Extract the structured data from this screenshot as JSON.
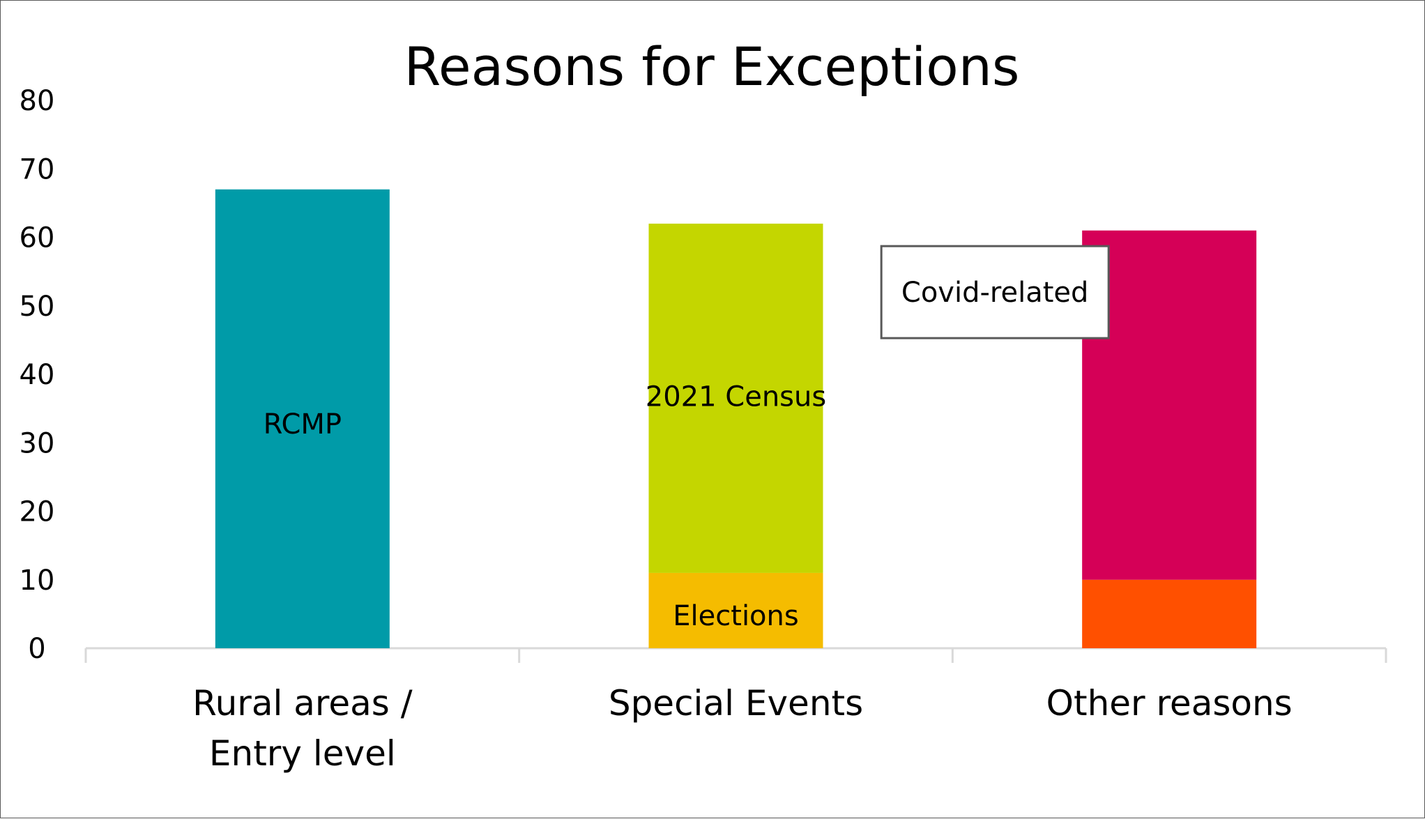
{
  "chart_data": {
    "type": "bar",
    "stacked": true,
    "title": "Reasons for Exceptions",
    "xlabel": "",
    "ylabel": "",
    "ylim": [
      0,
      80
    ],
    "yticks": [
      0,
      10,
      20,
      30,
      40,
      50,
      60,
      70,
      80
    ],
    "grid": false,
    "legend": "none",
    "categories": [
      [
        "Rural areas /",
        "Entry level"
      ],
      [
        "Special Events"
      ],
      [
        "Other reasons"
      ]
    ],
    "segments": [
      {
        "category_index": 0,
        "start": 0,
        "value": 67,
        "color": "#009BA8",
        "label": "RCMP",
        "label_at": 33
      },
      {
        "category_index": 1,
        "start": 0,
        "value": 11,
        "color": "#F5BC00",
        "label": "Elections",
        "label_at": 5
      },
      {
        "category_index": 1,
        "start": 11,
        "value": 51,
        "color": "#C4D600",
        "label": "2021 Census",
        "label_at": 37
      },
      {
        "category_index": 2,
        "start": 0,
        "value": 10,
        "color": "#FF5000",
        "label": "",
        "label_at": 5
      },
      {
        "category_index": 2,
        "start": 10,
        "value": 51,
        "color": "#D50057",
        "label": "",
        "label_at": 35
      }
    ],
    "annotations": [
      {
        "text": "Covid-related",
        "category_index": 2,
        "y": 52,
        "style": "boxed"
      }
    ],
    "axis_color": "#D9D9D9"
  }
}
